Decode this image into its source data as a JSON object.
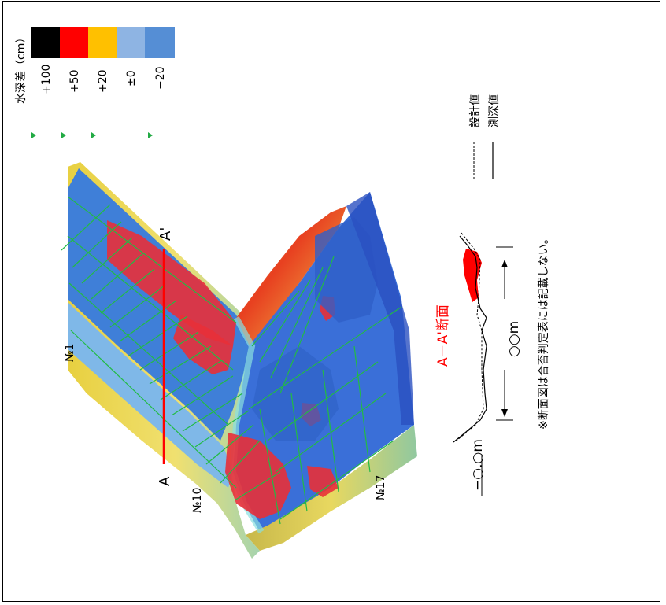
{
  "legend": {
    "title": "水深差（cm）",
    "items": [
      {
        "label": "+100",
        "color": "#000000"
      },
      {
        "label": "+50",
        "color": "#ff0000"
      },
      {
        "label": "+20",
        "color": "#ffc000"
      },
      {
        "label": "±0",
        "color": "#8eb4e3"
      },
      {
        "label": "−20",
        "color": "#558ed5"
      }
    ]
  },
  "map": {
    "section_label_left": "A",
    "section_label_right": "A'",
    "station_labels": [
      "№1",
      "№10",
      "№17"
    ]
  },
  "section": {
    "title": "A－A'断面",
    "depth_label": "−○.○m",
    "width_label": "○○m",
    "line_design": "設計値",
    "line_measured": "測深値",
    "note": "※断面図は合否判定表には記載しない。"
  },
  "colors": {
    "accent_red": "#ff0000",
    "grid_green": "#22bb44",
    "deep_blue": "#3a6fd8"
  }
}
